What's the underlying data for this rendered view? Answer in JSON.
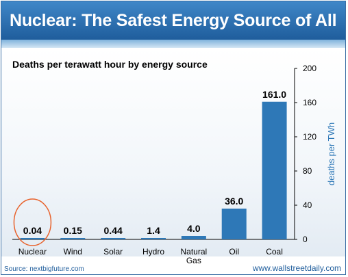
{
  "header": {
    "title": "Nuclear: The Safest Energy Source of All"
  },
  "footer": {
    "source": "Source: nextbigfuture.com",
    "site": "www.wallstreetdaily.com"
  },
  "chart_data": {
    "type": "bar",
    "title": "Deaths per terawatt hour by energy source",
    "categories": [
      "Nuclear",
      "Wind",
      "Solar",
      "Hydro",
      "Natural Gas",
      "Oil",
      "Coal"
    ],
    "category_lines": [
      [
        "Nuclear"
      ],
      [
        "Wind"
      ],
      [
        "Solar"
      ],
      [
        "Hydro"
      ],
      [
        "Natural",
        "Gas"
      ],
      [
        "Oil"
      ],
      [
        "Coal"
      ]
    ],
    "values": [
      0.04,
      0.15,
      0.44,
      1.4,
      4.0,
      36.0,
      161.0
    ],
    "value_labels": [
      "0.04",
      "0.15",
      "0.44",
      "1.4",
      "4.0",
      "36.0",
      "161.0"
    ],
    "ylabel": "deaths per TWh",
    "ylim": [
      0,
      200
    ],
    "yticks": [
      "0",
      "40",
      "80",
      "120",
      "160",
      "200"
    ],
    "highlight": "Nuclear",
    "colors": {
      "bar": "#2e78b7",
      "highlight_circle": "#e8622c",
      "axis_label": "#2e78b7"
    }
  }
}
